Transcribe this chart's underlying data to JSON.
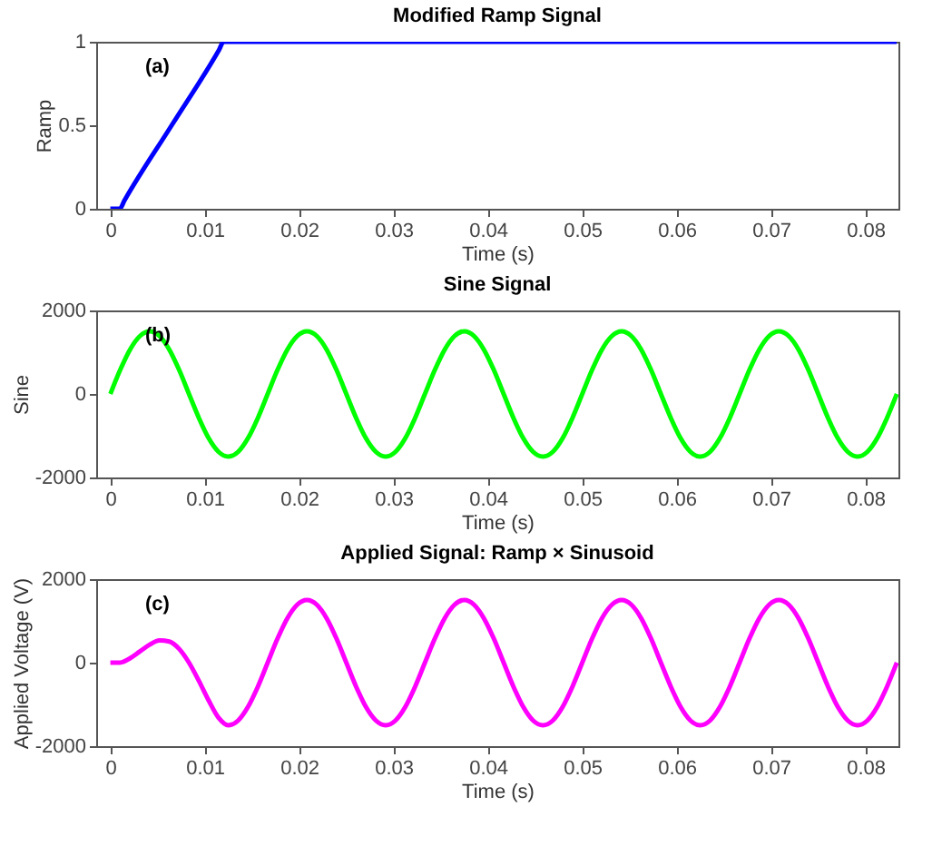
{
  "chart_data": [
    {
      "type": "line",
      "title": "Modified Ramp Signal",
      "xlabel": "Time (s)",
      "ylabel": "Ramp",
      "annotations": [
        "(a)"
      ],
      "x": [
        0,
        0.001,
        0.0015,
        0.0065,
        0.0115,
        0.012,
        0.0833
      ],
      "series": [
        {
          "color": "#0000ff",
          "values": [
            0,
            0,
            0.05,
            0.5,
            0.95,
            1,
            1
          ]
        }
      ],
      "xlim": [
        -0.0015,
        0.0835
      ],
      "xticks": [
        0,
        0.01,
        0.02,
        0.03,
        0.04,
        0.05,
        0.06,
        0.07,
        0.08
      ],
      "ylim": [
        0,
        1
      ],
      "yticks": [
        0,
        0.5,
        1
      ]
    },
    {
      "type": "line",
      "title": "Sine Signal",
      "xlabel": "Time (s)",
      "ylabel": "Sine",
      "annotations": [
        "(b)"
      ],
      "x": [
        0,
        0.00104,
        0.00208,
        0.00313,
        0.00417,
        0.00521,
        0.00625,
        0.00729,
        0.00833,
        0.00938,
        0.01042,
        0.01146,
        0.0125,
        0.01354,
        0.01458,
        0.01563,
        0.01667,
        0.01771,
        0.01875,
        0.01979,
        0.02083,
        0.02188,
        0.02292,
        0.02396,
        0.025,
        0.02604,
        0.02708,
        0.02813,
        0.02917,
        0.03021,
        0.03125,
        0.03229,
        0.03333,
        0.03438,
        0.03542,
        0.03646,
        0.0375,
        0.03854,
        0.03958,
        0.04063,
        0.04167,
        0.04271,
        0.04375,
        0.04479,
        0.04583,
        0.04688,
        0.04792,
        0.04896,
        0.05,
        0.05104,
        0.05208,
        0.05313,
        0.05417,
        0.05521,
        0.05625,
        0.05729,
        0.05833,
        0.05938,
        0.06042,
        0.06146,
        0.0625,
        0.06354,
        0.06458,
        0.06563,
        0.06667,
        0.06771,
        0.06875,
        0.06979,
        0.07083,
        0.07188,
        0.07292,
        0.07396,
        0.075,
        0.07604,
        0.07708,
        0.07813,
        0.07917,
        0.08021,
        0.08125,
        0.08229,
        0.08333
      ],
      "series": [
        {
          "color": "#00ff00",
          "values": [
            0,
            574,
            1061,
            1386,
            1500,
            1386,
            1061,
            574,
            0,
            -574,
            -1061,
            -1386,
            -1500,
            -1386,
            -1061,
            -574,
            0,
            574,
            1061,
            1386,
            1500,
            1386,
            1061,
            574,
            0,
            -574,
            -1061,
            -1386,
            -1500,
            -1386,
            -1061,
            -574,
            0,
            574,
            1061,
            1386,
            1500,
            1386,
            1061,
            574,
            0,
            -574,
            -1061,
            -1386,
            -1500,
            -1386,
            -1061,
            -574,
            0,
            574,
            1061,
            1386,
            1500,
            1386,
            1061,
            574,
            0,
            -574,
            -1061,
            -1386,
            -1500,
            -1386,
            -1061,
            -574,
            0,
            574,
            1061,
            1386,
            1500,
            1386,
            1061,
            574,
            0,
            -574,
            -1061,
            -1386,
            -1500,
            -1386,
            -1061,
            -574,
            0
          ]
        }
      ],
      "xlim": [
        -0.0015,
        0.0835
      ],
      "xticks": [
        0,
        0.01,
        0.02,
        0.03,
        0.04,
        0.05,
        0.06,
        0.07,
        0.08
      ],
      "ylim": [
        -2000,
        2000
      ],
      "yticks": [
        -2000,
        0,
        2000
      ]
    },
    {
      "type": "line",
      "title": "Applied Signal: Ramp × Sinusoid",
      "xlabel": "Time (s)",
      "ylabel": "Applied Voltage (V)",
      "annotations": [
        "(c)"
      ],
      "x": [
        0,
        0.00104,
        0.00208,
        0.00313,
        0.00417,
        0.00521,
        0.00625,
        0.00729,
        0.00833,
        0.00938,
        0.01042,
        0.01146,
        0.0125,
        0.01354,
        0.01458,
        0.01563,
        0.01667,
        0.01771,
        0.01875,
        0.01979,
        0.02083,
        0.02188,
        0.02292,
        0.02396,
        0.025,
        0.02604,
        0.02708,
        0.02813,
        0.02917,
        0.03021,
        0.03125,
        0.03229,
        0.03333,
        0.03438,
        0.03542,
        0.03646,
        0.0375,
        0.03854,
        0.03958,
        0.04063,
        0.04167,
        0.04271,
        0.04375,
        0.04479,
        0.04583,
        0.04688,
        0.04792,
        0.04896,
        0.05,
        0.05104,
        0.05208,
        0.05313,
        0.05417,
        0.05521,
        0.05625,
        0.05729,
        0.05833,
        0.05938,
        0.06042,
        0.06146,
        0.0625,
        0.06354,
        0.06458,
        0.06563,
        0.06667,
        0.06771,
        0.06875,
        0.06979,
        0.07083,
        0.07188,
        0.07292,
        0.07396,
        0.075,
        0.07604,
        0.07708,
        0.07813,
        0.07917,
        0.08021,
        0.08125,
        0.08229,
        0.08333
      ],
      "series": [
        {
          "color": "#ff00ff",
          "values": [
            0,
            2,
            104,
            268,
            432,
            531,
            506,
            328,
            0,
            -437,
            -908,
            -1318,
            -1500,
            -1386,
            -1061,
            -574,
            0,
            574,
            1061,
            1386,
            1500,
            1386,
            1061,
            574,
            0,
            -574,
            -1061,
            -1386,
            -1500,
            -1386,
            -1061,
            -574,
            0,
            574,
            1061,
            1386,
            1500,
            1386,
            1061,
            574,
            0,
            -574,
            -1061,
            -1386,
            -1500,
            -1386,
            -1061,
            -574,
            0,
            574,
            1061,
            1386,
            1500,
            1386,
            1061,
            574,
            0,
            -574,
            -1061,
            -1386,
            -1500,
            -1386,
            -1061,
            -574,
            0,
            574,
            1061,
            1386,
            1500,
            1386,
            1061,
            574,
            0,
            -574,
            -1061,
            -1386,
            -1500,
            -1386,
            -1061,
            -574,
            0
          ]
        }
      ],
      "xlim": [
        -0.0015,
        0.0835
      ],
      "xticks": [
        0,
        0.01,
        0.02,
        0.03,
        0.04,
        0.05,
        0.06,
        0.07,
        0.08
      ],
      "ylim": [
        -2000,
        2000
      ],
      "yticks": [
        -2000,
        0,
        2000
      ]
    }
  ]
}
